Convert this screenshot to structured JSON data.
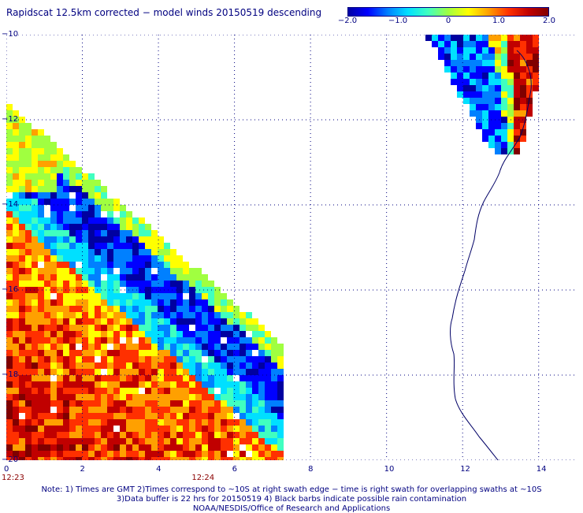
{
  "title": "Rapidscat 12.5km corrected − model winds 20150519 descending",
  "colorbar": {
    "ticks": [
      {
        "label": "−2.0",
        "value": -2.0
      },
      {
        "label": "−1.0",
        "value": -1.0
      },
      {
        "label": "0",
        "value": 0
      },
      {
        "label": "1.0",
        "value": 1.0
      },
      {
        "label": "2.0",
        "value": 2.0
      }
    ],
    "range": [
      -2.0,
      2.0
    ],
    "colors": [
      "#0000a0",
      "#0000ff",
      "#0080ff",
      "#00e0ff",
      "#40ffc0",
      "#a0ff40",
      "#ffff00",
      "#ffa000",
      "#ff3000",
      "#c00000",
      "#800000"
    ]
  },
  "axes": {
    "y_ticks": [
      {
        "label": "−10",
        "value": -10
      },
      {
        "label": "−12",
        "value": -12
      },
      {
        "label": "−14",
        "value": -14
      },
      {
        "label": "−16",
        "value": -16
      },
      {
        "label": "−18",
        "value": -18
      },
      {
        "label": "−20",
        "value": -20
      }
    ],
    "x_ticks": [
      {
        "label": "0",
        "value": 0
      },
      {
        "label": "2",
        "value": 2
      },
      {
        "label": "4",
        "value": 4
      },
      {
        "label": "6",
        "value": 6
      },
      {
        "label": "8",
        "value": 8
      },
      {
        "label": "10",
        "value": 10
      },
      {
        "label": "12",
        "value": 12
      },
      {
        "label": "14",
        "value": 14
      }
    ],
    "time_ticks": [
      {
        "label": "12:23",
        "value": 0
      },
      {
        "label": "12:24",
        "value": 5
      }
    ],
    "x_range": [
      0,
      15
    ],
    "y_range": [
      -20,
      -10
    ],
    "grid": true
  },
  "notes": [
    "Note: 1) Times are GMT 2)Times correspond to ~10S at right swath edge − time is right swath for overlapping swaths at ~10S",
    "3)Data buffer is 22 hrs for 20150519 4) Black barbs indicate possible rain contamination",
    "NOAA/NESDIS/Office of Research and Applications"
  ]
}
